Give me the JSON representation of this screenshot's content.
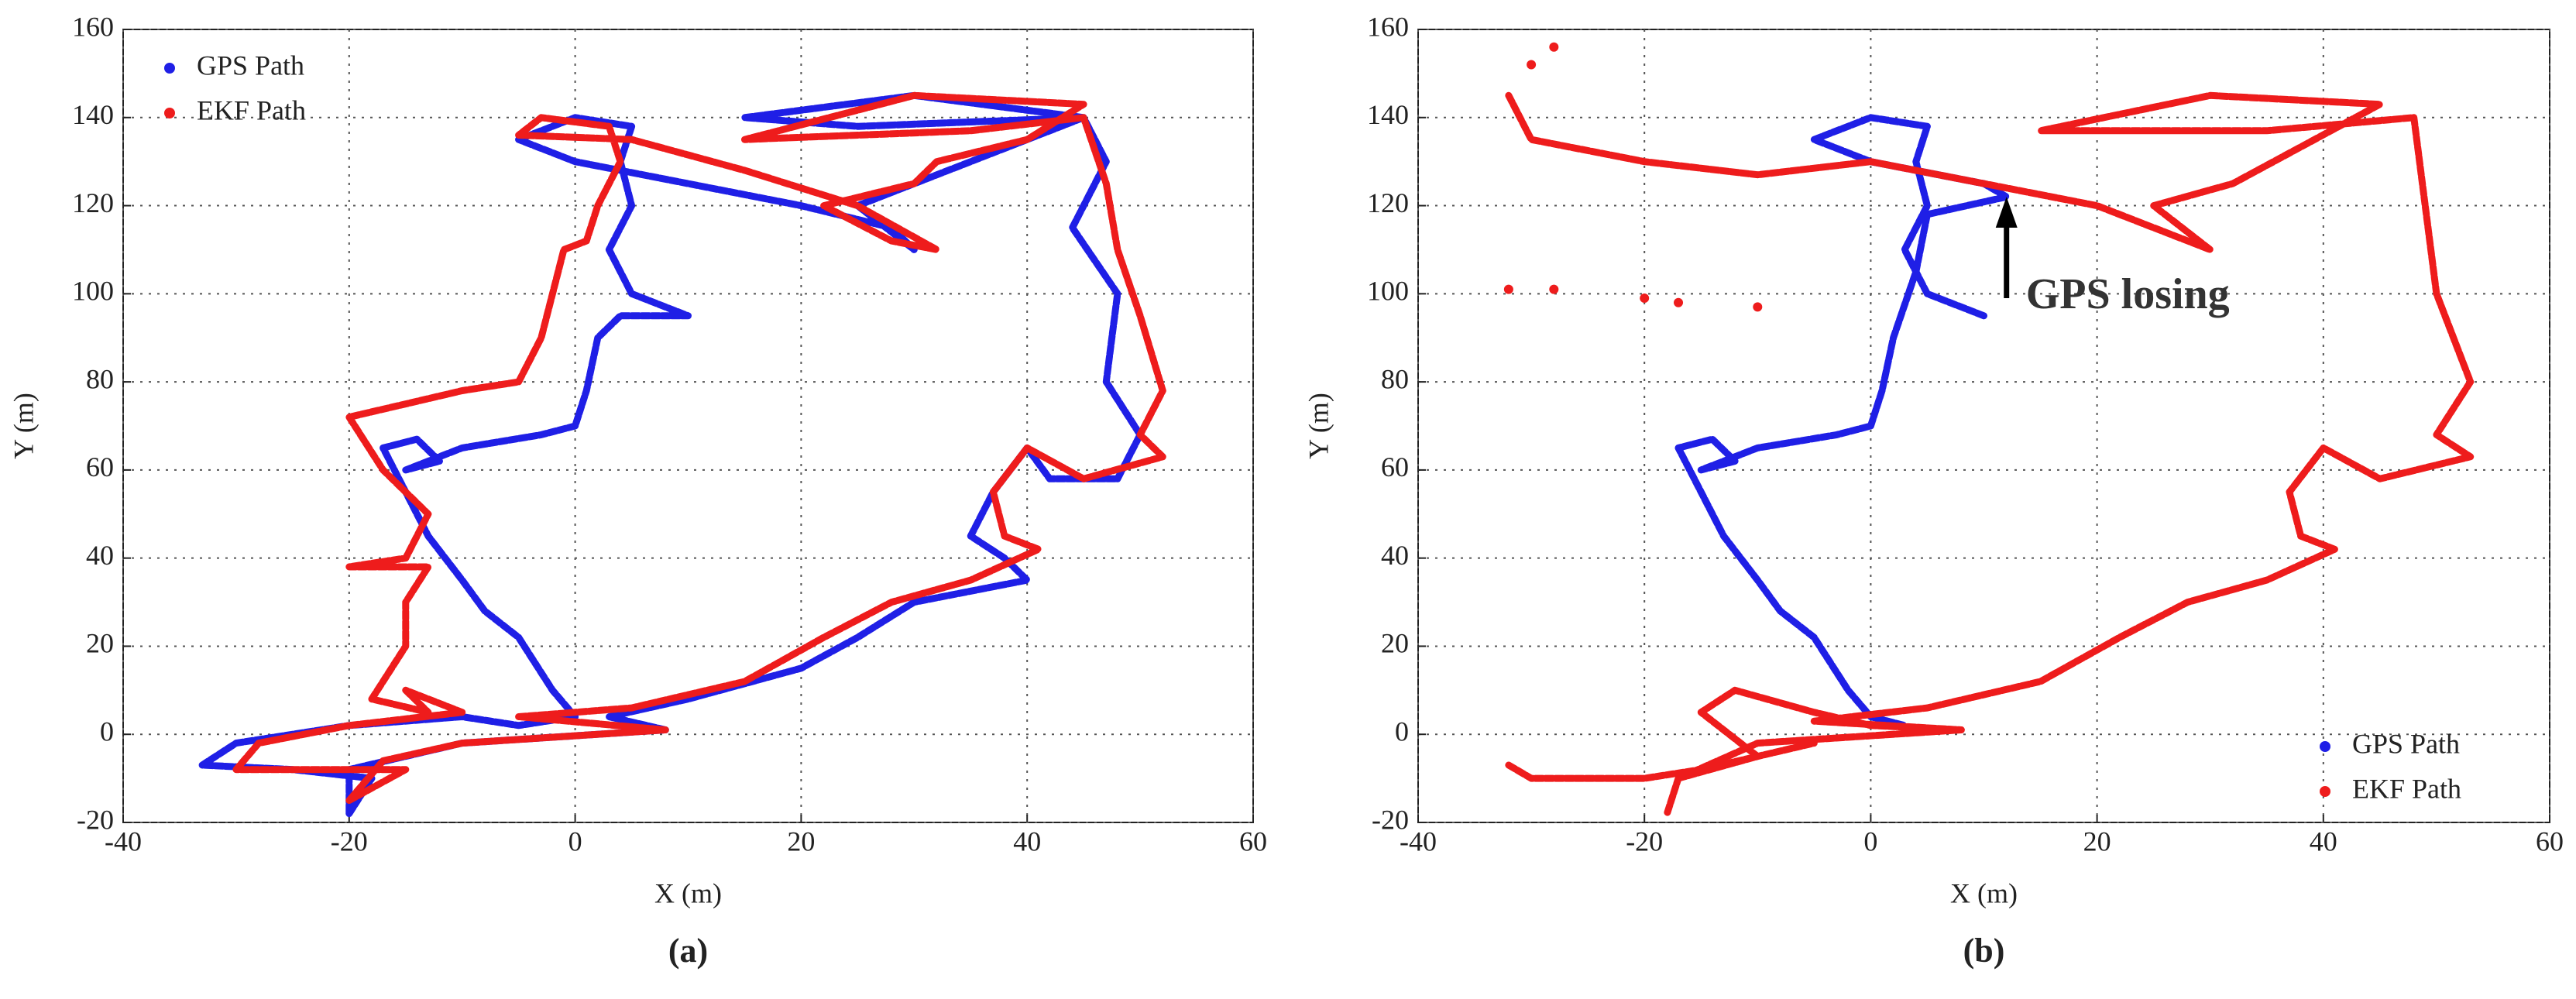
{
  "chart_data": [
    {
      "type": "line",
      "subtitle": "(a)",
      "xlabel": "X (m)",
      "ylabel": "Y (m)",
      "xlim": [
        -40,
        60
      ],
      "ylim": [
        -20,
        160
      ],
      "xticks": [
        -40,
        -20,
        0,
        20,
        40,
        60
      ],
      "yticks": [
        -20,
        0,
        20,
        40,
        60,
        80,
        100,
        120,
        140,
        160
      ],
      "grid": true,
      "legend": "upper left",
      "series": [
        {
          "name": "GPS Path",
          "color": "#1f1fe6",
          "x": [
            -20,
            -18,
            -25,
            -33,
            -30,
            -20,
            -10,
            -5,
            0,
            -2,
            -5,
            -8,
            -10,
            -13,
            -15,
            -17,
            -14,
            -12,
            -15,
            -10,
            -3,
            0,
            1,
            2,
            4,
            10,
            5,
            3,
            5,
            4,
            5,
            0,
            -5,
            0,
            10,
            20,
            28,
            30,
            25,
            35,
            45,
            30,
            15,
            25,
            45,
            47,
            44,
            48,
            47,
            50,
            48,
            42,
            40,
            37,
            35,
            38,
            40,
            30,
            25,
            20,
            10,
            3,
            8,
            -10,
            -20,
            -20
          ],
          "values": [
            -18,
            -10,
            -8,
            -7,
            -2,
            2,
            4,
            2,
            4,
            10,
            22,
            28,
            35,
            45,
            55,
            65,
            67,
            62,
            60,
            65,
            68,
            70,
            78,
            90,
            95,
            95,
            100,
            110,
            120,
            130,
            138,
            140,
            135,
            130,
            125,
            120,
            115,
            110,
            120,
            130,
            140,
            145,
            140,
            138,
            140,
            130,
            115,
            100,
            80,
            68,
            58,
            58,
            65,
            55,
            45,
            40,
            35,
            30,
            22,
            15,
            8,
            4,
            1,
            -2,
            -8,
            -18
          ]
        },
        {
          "name": "EKF Path",
          "color": "#ee1c1c",
          "x": [
            -20,
            -15,
            -25,
            -30,
            -28,
            -20,
            -10,
            -15,
            -13,
            -18,
            -15,
            -15,
            -13,
            -20,
            -15,
            -13,
            -17,
            -20,
            -15,
            -10,
            -5,
            -3,
            -2,
            -1,
            1,
            2,
            4,
            3,
            -3,
            -5,
            5,
            15,
            25,
            32,
            28,
            22,
            30,
            32,
            40,
            45,
            30,
            15,
            35,
            45,
            47,
            48,
            50,
            52,
            50,
            52,
            45,
            40,
            37,
            38,
            41,
            35,
            28,
            22,
            15,
            5,
            -5,
            8,
            -10,
            -17,
            -20
          ],
          "values": [
            -15,
            -8,
            -8,
            -8,
            -2,
            2,
            5,
            10,
            5,
            8,
            20,
            30,
            38,
            38,
            40,
            50,
            60,
            72,
            75,
            78,
            80,
            90,
            100,
            110,
            112,
            120,
            130,
            138,
            140,
            136,
            135,
            128,
            120,
            110,
            112,
            120,
            125,
            130,
            135,
            143,
            145,
            135,
            137,
            140,
            125,
            110,
            95,
            78,
            68,
            63,
            58,
            65,
            55,
            45,
            42,
            35,
            30,
            22,
            12,
            6,
            4,
            1,
            -2,
            -6,
            -15
          ]
        }
      ]
    },
    {
      "type": "line",
      "subtitle": "(b)",
      "xlabel": "X (m)",
      "ylabel": "Y (m)",
      "annotation": "GPS losing",
      "xlim": [
        -40,
        60
      ],
      "ylim": [
        -20,
        160
      ],
      "xticks": [
        -40,
        -20,
        0,
        20,
        40,
        60
      ],
      "yticks": [
        -20,
        0,
        20,
        40,
        60,
        80,
        100,
        120,
        140,
        160
      ],
      "grid": true,
      "legend": "lower right",
      "series": [
        {
          "name": "GPS Path",
          "color": "#1f1fe6",
          "x": [
            10,
            5,
            3,
            5,
            4,
            5,
            0,
            -5,
            0,
            10,
            12,
            5,
            4,
            2,
            1,
            0,
            -3,
            -10,
            -15,
            -12,
            -14,
            -17,
            -15,
            -13,
            -10,
            -8,
            -5,
            -2,
            0,
            3
          ],
          "values": [
            95,
            100,
            110,
            120,
            130,
            138,
            140,
            135,
            130,
            125,
            122,
            118,
            105,
            90,
            78,
            70,
            68,
            65,
            60,
            62,
            67,
            65,
            55,
            45,
            35,
            28,
            22,
            10,
            4,
            2
          ]
        },
        {
          "name": "EKF Path",
          "color": "#ee1c1c",
          "x": [
            -32,
            -30,
            -20,
            -10,
            0,
            10,
            20,
            30,
            25,
            32,
            45,
            30,
            15,
            35,
            48,
            49,
            50,
            53,
            50,
            53,
            45,
            40,
            37,
            38,
            41,
            35,
            28,
            22,
            15,
            5,
            -5,
            8,
            -10,
            -17,
            -18,
            null,
            -17,
            -10,
            -15,
            -12,
            -5,
            0,
            8,
            null,
            -32,
            -30,
            -20,
            -15,
            -10,
            -5,
            null,
            -32,
            null,
            -28,
            null,
            -20,
            null,
            -17,
            null,
            -10,
            null,
            -30,
            null,
            -28
          ],
          "values": [
            145,
            135,
            130,
            127,
            130,
            125,
            120,
            110,
            120,
            125,
            143,
            145,
            137,
            137,
            140,
            120,
            100,
            80,
            68,
            63,
            58,
            65,
            55,
            45,
            42,
            35,
            30,
            22,
            12,
            6,
            3,
            1,
            -2,
            -10,
            -18,
            null,
            -10,
            -5,
            5,
            10,
            5,
            2,
            1,
            null,
            -7,
            -10,
            -10,
            -8,
            -5,
            -2,
            null,
            101,
            null,
            101,
            null,
            99,
            null,
            98,
            null,
            97,
            null,
            152,
            null,
            156
          ]
        }
      ]
    }
  ]
}
